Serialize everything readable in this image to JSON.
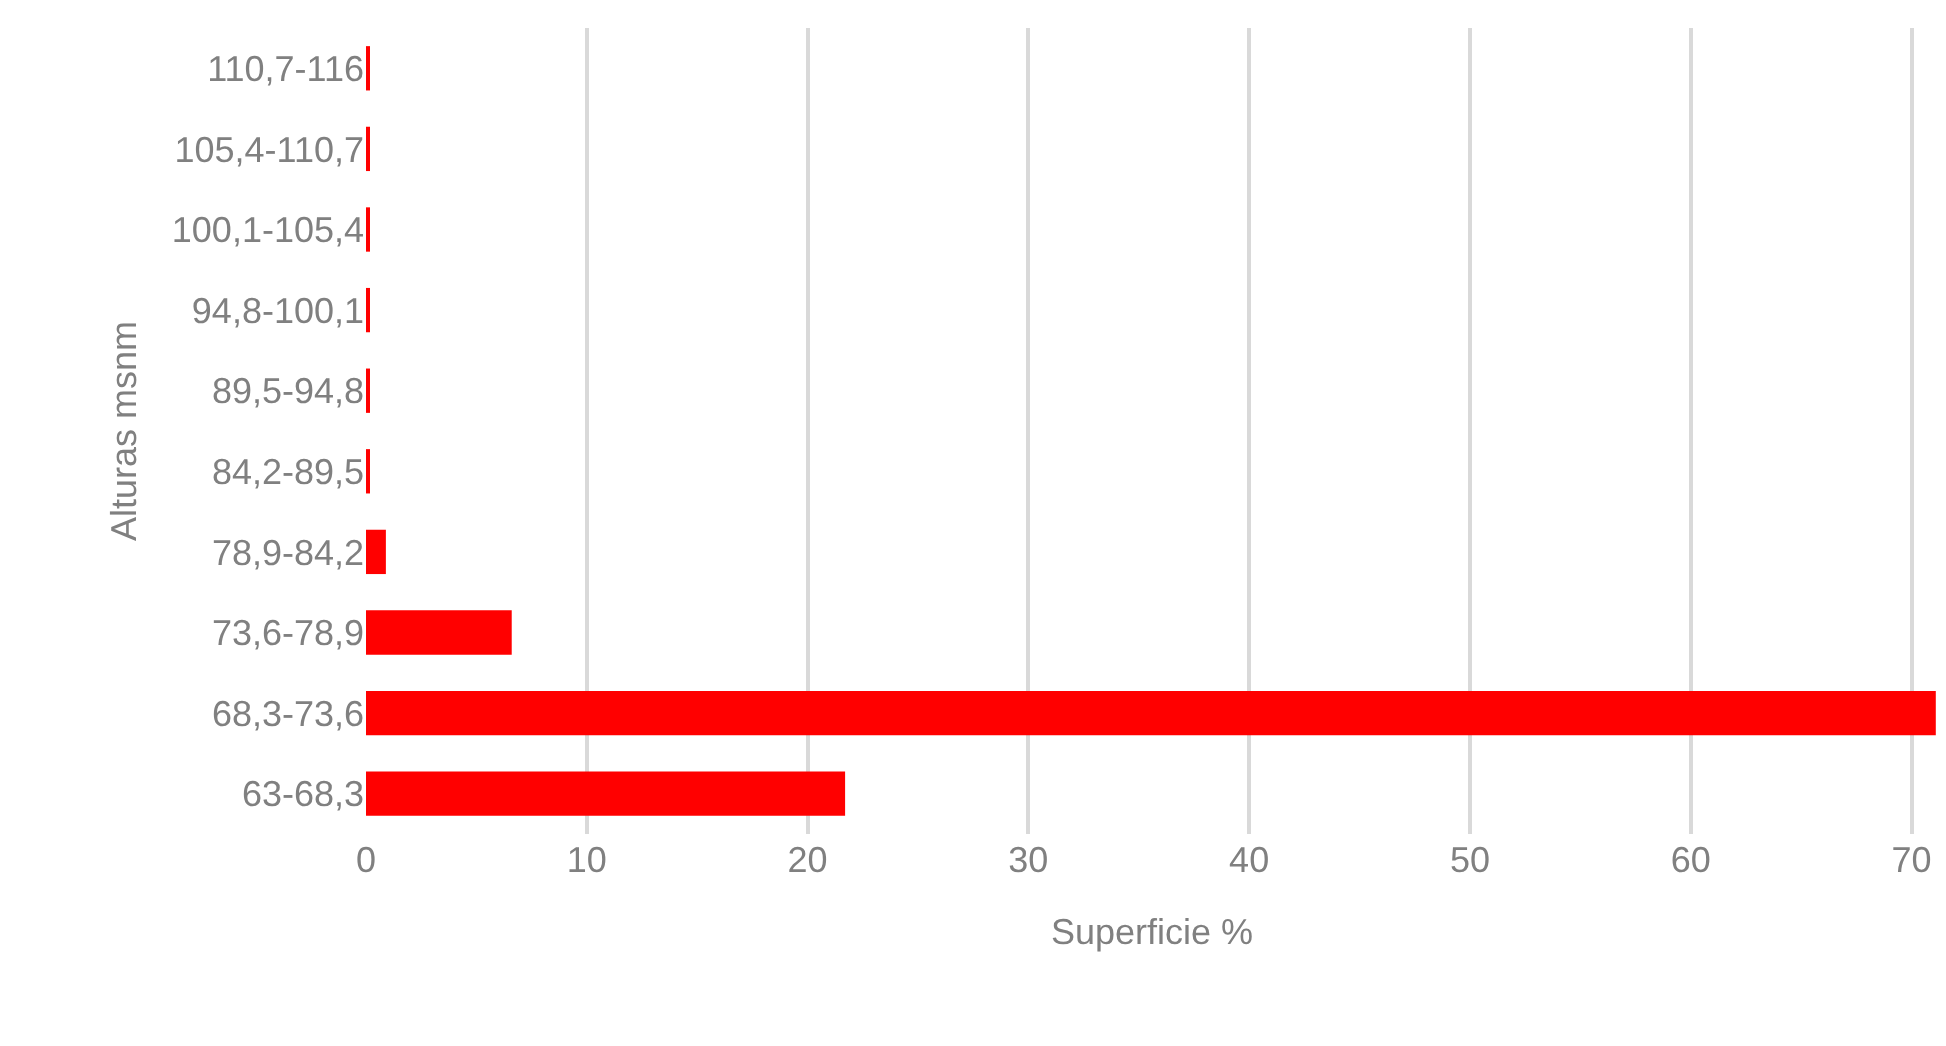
{
  "chart_data": {
    "type": "bar",
    "orientation": "horizontal",
    "xlabel": "Superficie %",
    "ylabel": "Alturas msnm",
    "categories": [
      "110,7-116",
      "105,4-110,7",
      "100,1-105,4",
      "94,8-100,1",
      "89,5-94,8",
      "84,2-89,5",
      "78,9-84,2",
      "73,6-78,9",
      "68,3-73,6",
      "63-68,3"
    ],
    "values": [
      0.1,
      0.1,
      0.1,
      0.1,
      0.1,
      0.1,
      0.9,
      6.6,
      71.1,
      21.7
    ],
    "color": "#ff0000",
    "xlim": [
      0,
      71.2
    ],
    "xticks": [
      0,
      10,
      20,
      30,
      40,
      50,
      60,
      70
    ],
    "grid": "x"
  }
}
